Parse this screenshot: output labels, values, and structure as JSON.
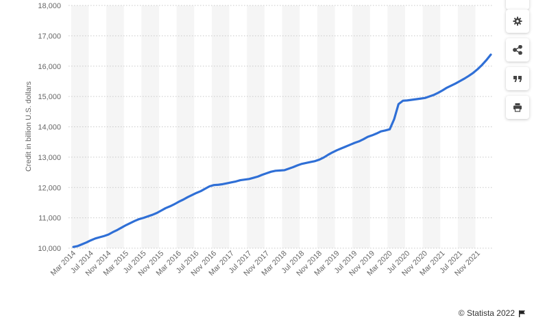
{
  "chart_data": {
    "type": "line",
    "ylabel": "Credit in billion U.S. dollars",
    "xlabel": "",
    "ylim": [
      10000,
      18000
    ],
    "yticks": [
      "10,000",
      "11,000",
      "12,000",
      "13,000",
      "14,000",
      "15,000",
      "16,000",
      "17,000",
      "18,000"
    ],
    "ytick_values": [
      10000,
      11000,
      12000,
      13000,
      14000,
      15000,
      16000,
      17000,
      18000
    ],
    "xticks": [
      "Mar 2014",
      "Jul 2014",
      "Nov 2014",
      "Mar 2015",
      "Jul 2015",
      "Nov 2015",
      "Mar 2016",
      "Jul 2016",
      "Nov 2016",
      "Mar 2017",
      "Jul 2017",
      "Nov 2017",
      "Mar 2018",
      "Jul 2018",
      "Nov 2018",
      "Mar 2019",
      "Jul 2019",
      "Nov 2019",
      "Mar 2020",
      "Jul 2020",
      "Nov 2020",
      "Mar 2021",
      "Jul 2021",
      "Nov 2021"
    ],
    "grid": true,
    "line_color": "#2f6fd6",
    "series": [
      {
        "values": [
          10040,
          10070,
          10130,
          10190,
          10260,
          10320,
          10360,
          10400,
          10450,
          10530,
          10600,
          10680,
          10760,
          10830,
          10900,
          10960,
          11000,
          11050,
          11100,
          11160,
          11240,
          11320,
          11380,
          11450,
          11530,
          11600,
          11680,
          11750,
          11820,
          11880,
          11960,
          12040,
          12080,
          12090,
          12110,
          12140,
          12170,
          12200,
          12240,
          12260,
          12280,
          12320,
          12360,
          12420,
          12470,
          12520,
          12550,
          12560,
          12570,
          12620,
          12670,
          12730,
          12780,
          12810,
          12840,
          12870,
          12920,
          12990,
          13080,
          13160,
          13230,
          13290,
          13350,
          13410,
          13470,
          13520,
          13590,
          13670,
          13720,
          13780,
          13850,
          13880,
          13920,
          14250,
          14750,
          14860,
          14870,
          14890,
          14910,
          14930,
          14950,
          15000,
          15050,
          15120,
          15200,
          15290,
          15360,
          15430,
          15510,
          15590,
          15680,
          15780,
          15900,
          16040,
          16200,
          16380
        ]
      }
    ]
  },
  "toolbar": {
    "icons": [
      "gear-icon",
      "share-icon",
      "quote-icon",
      "print-icon"
    ]
  },
  "credit": {
    "text": "© Statista 2022",
    "icon": "flag-icon"
  }
}
